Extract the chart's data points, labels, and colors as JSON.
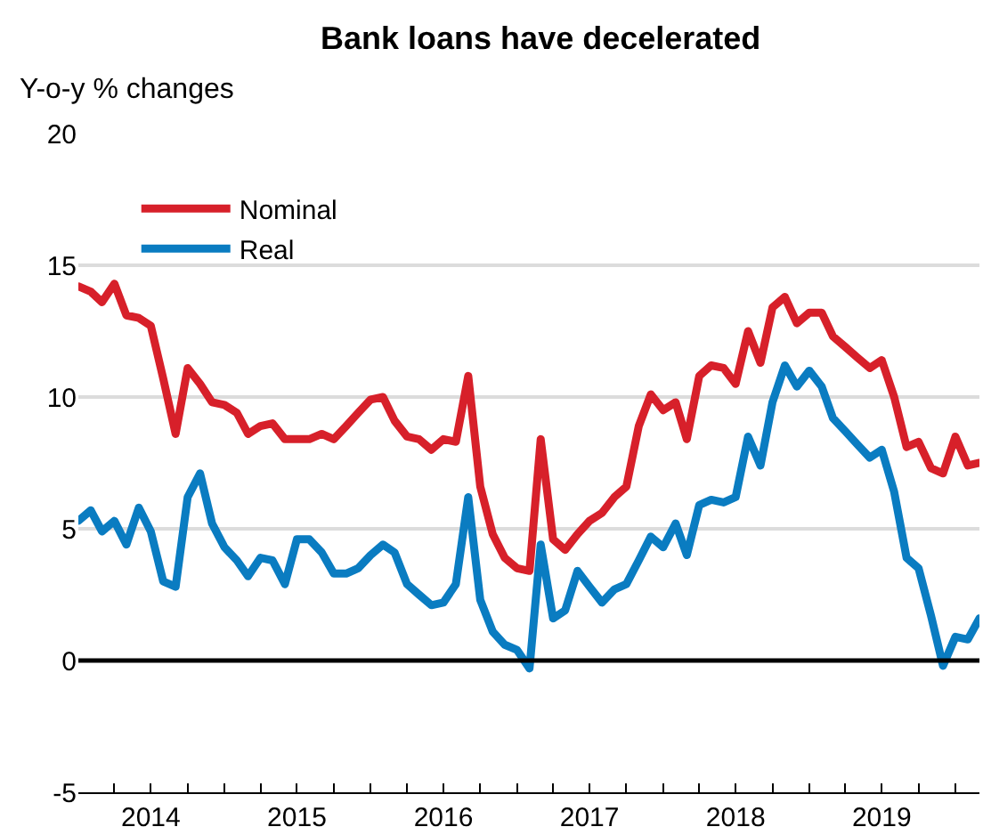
{
  "chart_data": {
    "type": "line",
    "title": "Bank loans have decelerated",
    "ylabel": "Y-o-y % changes",
    "x": [
      "2014-01",
      "2014-02",
      "2014-03",
      "2014-04",
      "2014-05",
      "2014-06",
      "2014-07",
      "2014-08",
      "2014-09",
      "2014-10",
      "2014-11",
      "2014-12",
      "2015-01",
      "2015-02",
      "2015-03",
      "2015-04",
      "2015-05",
      "2015-06",
      "2015-07",
      "2015-08",
      "2015-09",
      "2015-10",
      "2015-11",
      "2015-12",
      "2016-01",
      "2016-02",
      "2016-03",
      "2016-04",
      "2016-05",
      "2016-06",
      "2016-07",
      "2016-08",
      "2016-09",
      "2016-10",
      "2016-11",
      "2016-12",
      "2017-01",
      "2017-02",
      "2017-03",
      "2017-04",
      "2017-05",
      "2017-06",
      "2017-07",
      "2017-08",
      "2017-09",
      "2017-10",
      "2017-11",
      "2017-12",
      "2018-01",
      "2018-02",
      "2018-03",
      "2018-04",
      "2018-05",
      "2018-06",
      "2018-07",
      "2018-08",
      "2018-09",
      "2018-10",
      "2018-11",
      "2018-12",
      "2019-01",
      "2019-02",
      "2019-03",
      "2019-04",
      "2019-05",
      "2019-06",
      "2019-07",
      "2019-08",
      "2019-09",
      "2019-10",
      "2019-11",
      "2019-12",
      "2020-01",
      "2020-02",
      "2020-03"
    ],
    "series": [
      {
        "name": "Nominal",
        "color": "#d7202a",
        "values": [
          14.2,
          14.0,
          13.6,
          14.3,
          13.1,
          13.0,
          12.7,
          10.7,
          8.6,
          11.1,
          10.5,
          9.8,
          9.7,
          9.4,
          8.6,
          8.9,
          9.0,
          8.4,
          8.4,
          8.4,
          8.6,
          8.4,
          8.9,
          9.4,
          9.9,
          10.0,
          9.1,
          8.5,
          8.4,
          8.0,
          8.4,
          8.3,
          10.8,
          6.6,
          4.8,
          3.9,
          3.5,
          3.4,
          8.4,
          4.6,
          4.2,
          4.8,
          5.3,
          5.6,
          6.2,
          6.6,
          8.9,
          10.1,
          9.5,
          9.8,
          8.4,
          10.8,
          11.2,
          11.1,
          10.5,
          12.5,
          11.3,
          13.4,
          13.8,
          12.8,
          13.2,
          13.2,
          12.3,
          11.9,
          11.5,
          11.1,
          11.4,
          10.0,
          8.1,
          8.3,
          7.3,
          7.1,
          8.5,
          7.4,
          7.5
        ]
      },
      {
        "name": "Real",
        "color": "#0a7cc1",
        "values": [
          5.3,
          5.7,
          4.9,
          5.3,
          4.4,
          5.8,
          4.9,
          3.0,
          2.8,
          6.2,
          7.1,
          5.2,
          4.3,
          3.8,
          3.2,
          3.9,
          3.8,
          2.9,
          4.6,
          4.6,
          4.1,
          3.3,
          3.3,
          3.5,
          4.0,
          4.4,
          4.1,
          2.9,
          2.5,
          2.1,
          2.2,
          2.9,
          6.2,
          2.3,
          1.1,
          0.6,
          0.4,
          -0.3,
          4.4,
          1.6,
          1.9,
          3.4,
          2.8,
          2.2,
          2.7,
          2.9,
          3.8,
          4.7,
          4.3,
          5.2,
          4.0,
          5.9,
          6.1,
          6.0,
          6.2,
          8.5,
          7.4,
          9.8,
          11.2,
          10.4,
          11.0,
          10.4,
          9.2,
          8.7,
          8.2,
          7.7,
          8.0,
          6.4,
          3.9,
          3.5,
          1.7,
          -0.2,
          0.9,
          0.8,
          1.6
        ]
      }
    ],
    "xlim": [
      "2014-01-01",
      "2020-03-01"
    ],
    "xticks": [
      {
        "value": "2014-04-01",
        "label": null
      },
      {
        "value": "2014-07-01",
        "label": "2014"
      },
      {
        "value": "2014-10-01",
        "label": null
      },
      {
        "value": "2015-01-01",
        "label": null
      },
      {
        "value": "2015-04-01",
        "label": null
      },
      {
        "value": "2015-07-01",
        "label": "2015"
      },
      {
        "value": "2015-10-01",
        "label": null
      },
      {
        "value": "2016-01-01",
        "label": null
      },
      {
        "value": "2016-04-01",
        "label": null
      },
      {
        "value": "2016-07-01",
        "label": "2016"
      },
      {
        "value": "2016-10-01",
        "label": null
      },
      {
        "value": "2017-01-01",
        "label": null
      },
      {
        "value": "2017-04-01",
        "label": null
      },
      {
        "value": "2017-07-01",
        "label": "2017"
      },
      {
        "value": "2017-10-01",
        "label": null
      },
      {
        "value": "2018-01-01",
        "label": null
      },
      {
        "value": "2018-04-01",
        "label": null
      },
      {
        "value": "2018-07-01",
        "label": "2018"
      },
      {
        "value": "2018-10-01",
        "label": null
      },
      {
        "value": "2019-01-01",
        "label": null
      },
      {
        "value": "2019-04-01",
        "label": null
      },
      {
        "value": "2019-07-01",
        "label": "2019"
      },
      {
        "value": "2019-10-01",
        "label": null
      },
      {
        "value": "2020-01-01",
        "label": null
      }
    ],
    "ylim": [
      -5,
      20
    ],
    "yticks": [
      -5,
      0,
      5,
      10,
      15,
      20
    ],
    "ref_lines": [
      {
        "axis": "y",
        "value": 0,
        "color": "#000000"
      }
    ],
    "grid": "y",
    "legend": "top left",
    "marker": "none",
    "line_style": "solid"
  }
}
